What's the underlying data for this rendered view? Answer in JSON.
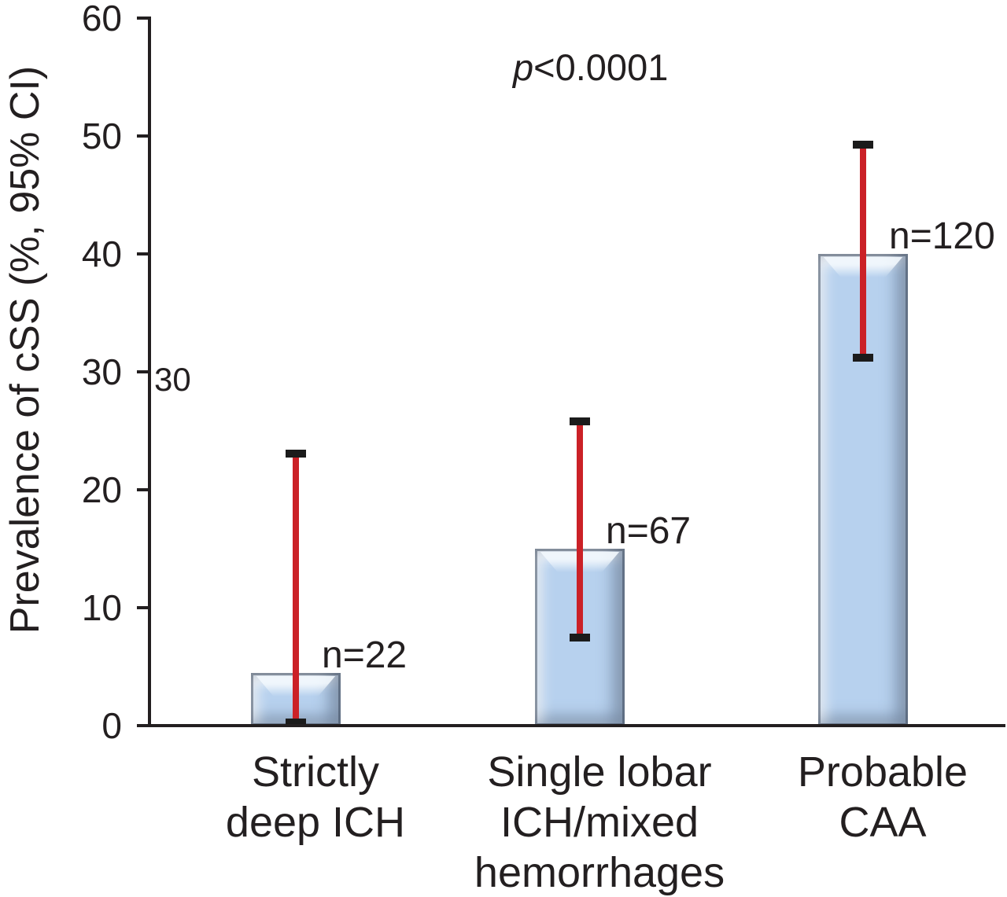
{
  "chart_data": {
    "type": "bar",
    "title": "",
    "ylabel": "Prevalence of cSS (%, 95% CI)",
    "xlabel": "",
    "ylim": [
      0,
      60
    ],
    "yticks": [
      0,
      10,
      20,
      30,
      40,
      50,
      60
    ],
    "grid": false,
    "legend": false,
    "annotation": "p<0.0001",
    "annotation_p": "p",
    "annotation_rest": "<0.0001",
    "stray_label": "30",
    "categories": [
      "Strictly deep ICH",
      "Single lobar ICH/mixed hemorrhages",
      "Probable CAA"
    ],
    "category_lines": [
      [
        "Strictly",
        "deep ICH"
      ],
      [
        "Single lobar",
        "ICH/mixed",
        "hemorrhages"
      ],
      [
        "Probable",
        "CAA"
      ]
    ],
    "values": [
      4.5,
      15,
      40
    ],
    "ci_low": [
      0.3,
      7.5,
      31.2
    ],
    "ci_high": [
      23.1,
      25.8,
      49.3
    ],
    "n_labels": [
      "n=22",
      "n=67",
      "n=120"
    ],
    "bar_color": "#b7d1ee",
    "bar_edge_color": "#7c8ea6",
    "bar_highlight_color": "#f2f8fd",
    "error_color": "#cb2127",
    "cap_color": "#1b1b1b",
    "axis_color": "#231f20"
  }
}
